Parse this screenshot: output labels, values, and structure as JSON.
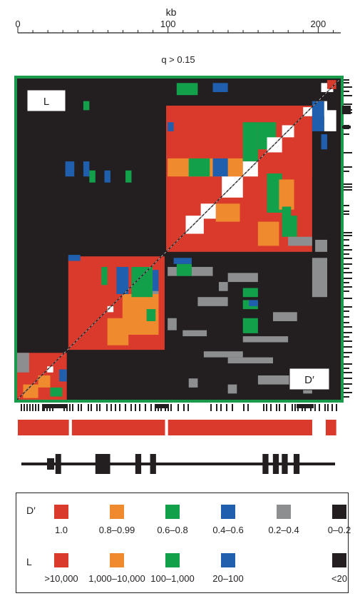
{
  "chart_data": {
    "type": "heatmap",
    "axis": {
      "label": "kb",
      "ticks": [
        0,
        100,
        200
      ],
      "range": [
        0,
        215
      ]
    },
    "threshold_label": "q > 0.15",
    "upper_triangle_label": "L",
    "lower_triangle_label": "D′",
    "border_color": "#1a9b4b",
    "legend": {
      "dprime": {
        "label": "D′",
        "bins": [
          {
            "label": "1.0",
            "color": "#d93a2b"
          },
          {
            "label": "0.8–0.99",
            "color": "#f08a2e"
          },
          {
            "label": "0.6–0.8",
            "color": "#12a04a"
          },
          {
            "label": "0.4–0.6",
            "color": "#1f5fae"
          },
          {
            "label": "0.2–0.4",
            "color": "#8c8e90"
          },
          {
            "label": "0–0.2",
            "color": "#231f20"
          }
        ]
      },
      "likelihood": {
        "label": "L",
        "bins": [
          {
            "label": ">10,000",
            "color": "#d93a2b"
          },
          {
            "label": "1,000–10,000",
            "color": "#f08a2e"
          },
          {
            "label": "100–1,000",
            "color": "#12a04a"
          },
          {
            "label": "20–100",
            "color": "#1f5fae"
          },
          {
            "label": "<20",
            "color": "#231f20"
          }
        ]
      }
    },
    "blocks_kb": [
      {
        "start": 0,
        "end": 34,
        "dprime": "1.0"
      },
      {
        "start": 36,
        "end": 98,
        "dprime": "1.0"
      },
      {
        "start": 100,
        "end": 196,
        "dprime": "1.0"
      },
      {
        "start": 205,
        "end": 212,
        "dprime": "1.0"
      }
    ],
    "exons_kb": [
      [
        23,
        25
      ],
      [
        50,
        60
      ],
      [
        77,
        81
      ],
      [
        87,
        91
      ],
      [
        163,
        167
      ],
      [
        170,
        174
      ],
      [
        176,
        180
      ],
      [
        184,
        188
      ]
    ]
  }
}
